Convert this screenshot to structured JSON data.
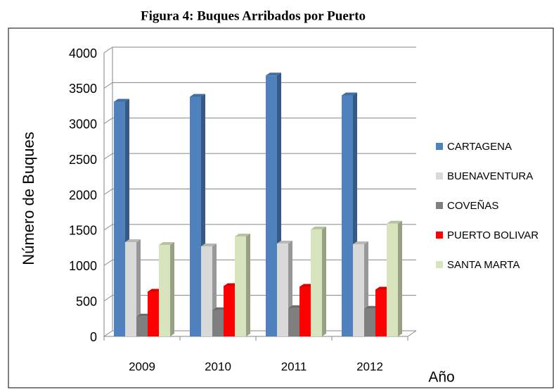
{
  "chart_data": {
    "type": "bar",
    "title": "Figura 4: Buques Arribados por Puerto",
    "y_label": "Número de Buques",
    "x_label": "Año",
    "categories": [
      "2009",
      "2010",
      "2011",
      "2012"
    ],
    "series": [
      {
        "name": "CARTAGENA",
        "color": "#4f81bd",
        "values": [
          3310,
          3380,
          3680,
          3400
        ]
      },
      {
        "name": "BUENAVENTURA",
        "color": "#d9d9d9",
        "values": [
          1330,
          1270,
          1310,
          1300
        ]
      },
      {
        "name": "COVEÑAS",
        "color": "#7f7f7f",
        "values": [
          280,
          370,
          400,
          390
        ]
      },
      {
        "name": "PUERTO BOLIVAR",
        "color": "#ff0000",
        "values": [
          630,
          710,
          700,
          660
        ]
      },
      {
        "name": "SANTA MARTA",
        "color": "#d7e4bd",
        "values": [
          1290,
          1410,
          1510,
          1590
        ]
      }
    ],
    "ylim": [
      0,
      4000
    ],
    "yticks": [
      0,
      500,
      1000,
      1500,
      2000,
      2500,
      3000,
      3500,
      4000
    ],
    "grid": true
  }
}
